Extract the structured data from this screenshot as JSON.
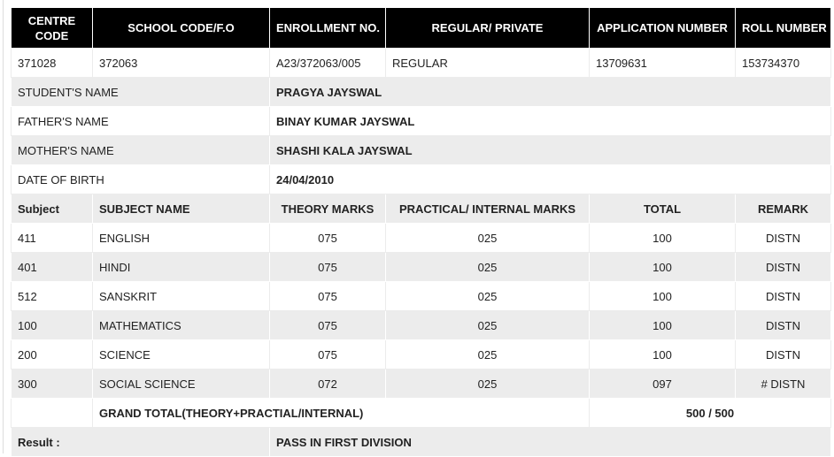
{
  "header": {
    "centre_code": "CENTRE CODE",
    "school_code": "SCHOOL CODE/F.O",
    "enrollment": "ENROLLMENT NO.",
    "regular_private": "REGULAR/ PRIVATE",
    "application_number": "APPLICATION NUMBER",
    "roll_number": "ROLL NUMBER"
  },
  "info": {
    "centre_code": "371028",
    "school_code": "372063",
    "enrollment": "A23/372063/005",
    "regular_private": "REGULAR",
    "application_number": "13709631",
    "roll_number": "153734370"
  },
  "student": {
    "name_label": "STUDENT'S NAME",
    "name": "PRAGYA JAYSWAL",
    "father_label": "FATHER'S NAME",
    "father": "BINAY KUMAR JAYSWAL",
    "mother_label": "MOTHER'S NAME",
    "mother": "SHASHI KALA JAYSWAL",
    "dob_label": "DATE OF BIRTH",
    "dob": "24/04/2010"
  },
  "marks_header": {
    "subject": "Subject",
    "subject_name": "SUBJECT NAME",
    "theory": "THEORY MARKS",
    "practical": "PRACTICAL/ INTERNAL MARKS",
    "total": "TOTAL",
    "remark": "REMARK"
  },
  "subjects": [
    {
      "code": "411",
      "name": "ENGLISH",
      "theory": "075",
      "practical": "025",
      "total": "100",
      "remark": "DISTN"
    },
    {
      "code": "401",
      "name": "HINDI",
      "theory": "075",
      "practical": "025",
      "total": "100",
      "remark": "DISTN"
    },
    {
      "code": "512",
      "name": "SANSKRIT",
      "theory": "075",
      "practical": "025",
      "total": "100",
      "remark": "DISTN"
    },
    {
      "code": "100",
      "name": "MATHEMATICS",
      "theory": "075",
      "practical": "025",
      "total": "100",
      "remark": "DISTN"
    },
    {
      "code": "200",
      "name": "SCIENCE",
      "theory": "075",
      "practical": "025",
      "total": "100",
      "remark": "DISTN"
    },
    {
      "code": "300",
      "name": "SOCIAL SCIENCE",
      "theory": "072",
      "practical": "025",
      "total": "097",
      "remark": "# DISTN"
    }
  ],
  "grand_total": {
    "label": "GRAND TOTAL(THEORY+PRACTIAL/INTERNAL)",
    "value": "500 / 500"
  },
  "result": {
    "label": "Result :",
    "value": "PASS IN FIRST DIVISION"
  }
}
